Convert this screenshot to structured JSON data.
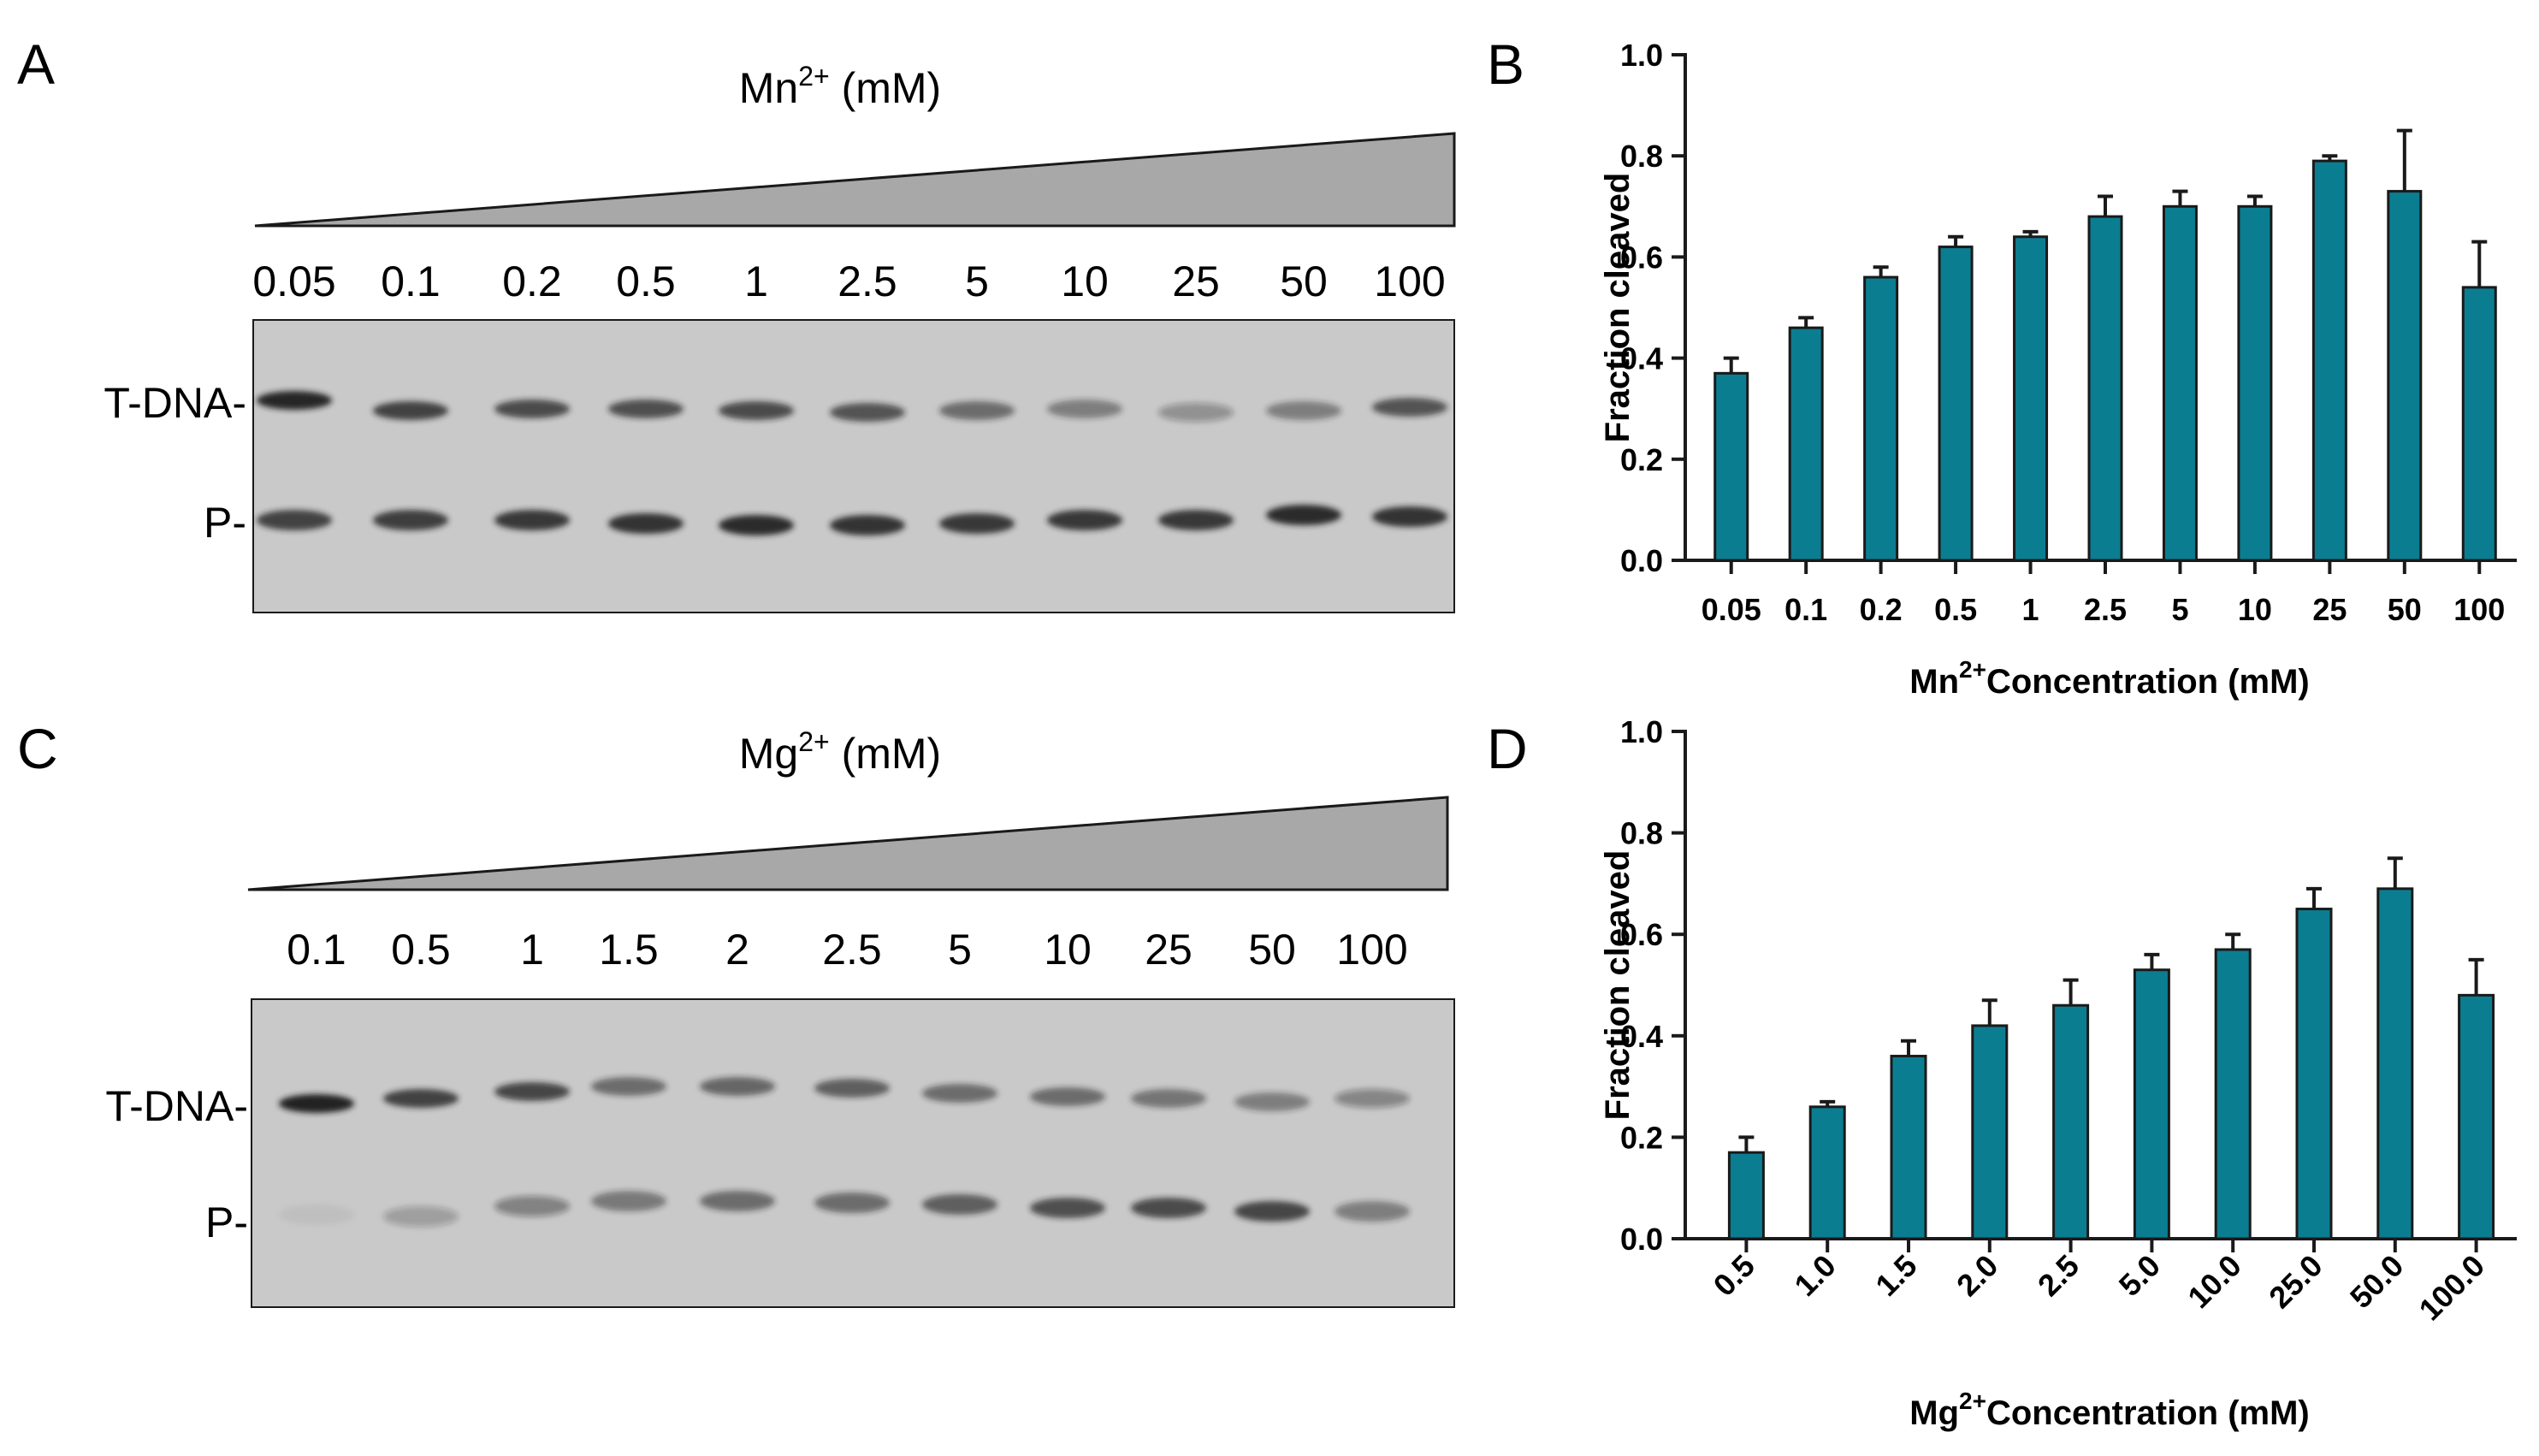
{
  "panels": {
    "a": {
      "letter": "A",
      "title_main": "Mn",
      "title_sup": "2+",
      "title_tail": " (mM)",
      "lanes": [
        "0.05",
        "0.1",
        "0.2",
        "0.5",
        "1",
        "2.5",
        "5",
        "10",
        "25",
        "50",
        "100"
      ],
      "band_labels": [
        "T-DNA-",
        "P-"
      ]
    },
    "b": {
      "letter": "B"
    },
    "c": {
      "letter": "C",
      "title_main": "Mg",
      "title_sup": "2+",
      "title_tail": " (mM)",
      "lanes": [
        "0.1",
        "0.5",
        "1",
        "1.5",
        "2",
        "2.5",
        "5",
        "10",
        "25",
        "50",
        "100"
      ],
      "band_labels": [
        "T-DNA-",
        "P-"
      ]
    },
    "d": {
      "letter": "D"
    }
  },
  "colors": {
    "bar": "#0b7d91",
    "gel": "#c9c9c9",
    "wedge": "#a8a8a8"
  },
  "chart_data": [
    {
      "type": "bar",
      "panel": "B",
      "categories": [
        "0.05",
        "0.1",
        "0.2",
        "0.5",
        "1",
        "2.5",
        "5",
        "10",
        "25",
        "50",
        "100"
      ],
      "values": [
        0.37,
        0.46,
        0.56,
        0.62,
        0.64,
        0.68,
        0.7,
        0.7,
        0.79,
        0.73,
        0.54
      ],
      "errors": [
        0.03,
        0.02,
        0.02,
        0.02,
        0.01,
        0.04,
        0.03,
        0.02,
        0.01,
        0.12,
        0.09
      ],
      "ylim": [
        0,
        1.0
      ],
      "yticks": [
        "0.0",
        "0.2",
        "0.4",
        "0.6",
        "0.8",
        "1.0"
      ],
      "ylabel": "Fraction cleaved",
      "xlabel_main": "Mn",
      "xlabel_sup": "2+",
      "xlabel_tail": "Concentration (mM)"
    },
    {
      "type": "bar",
      "panel": "D",
      "categories": [
        "0.5",
        "1.0",
        "1.5",
        "2.0",
        "2.5",
        "5.0",
        "10.0",
        "25.0",
        "50.0",
        "100.0"
      ],
      "values": [
        0.17,
        0.26,
        0.36,
        0.42,
        0.46,
        0.53,
        0.57,
        0.65,
        0.69,
        0.48
      ],
      "errors": [
        0.03,
        0.01,
        0.03,
        0.05,
        0.05,
        0.03,
        0.03,
        0.04,
        0.06,
        0.07
      ],
      "ylim": [
        0,
        1.0
      ],
      "yticks": [
        "0.0",
        "0.2",
        "0.4",
        "0.6",
        "0.8",
        "1.0"
      ],
      "ylabel": "Fraction cleaved",
      "xlabel_main": "Mg",
      "xlabel_sup": "2+",
      "xlabel_tail": "Concentration (mM)"
    }
  ]
}
